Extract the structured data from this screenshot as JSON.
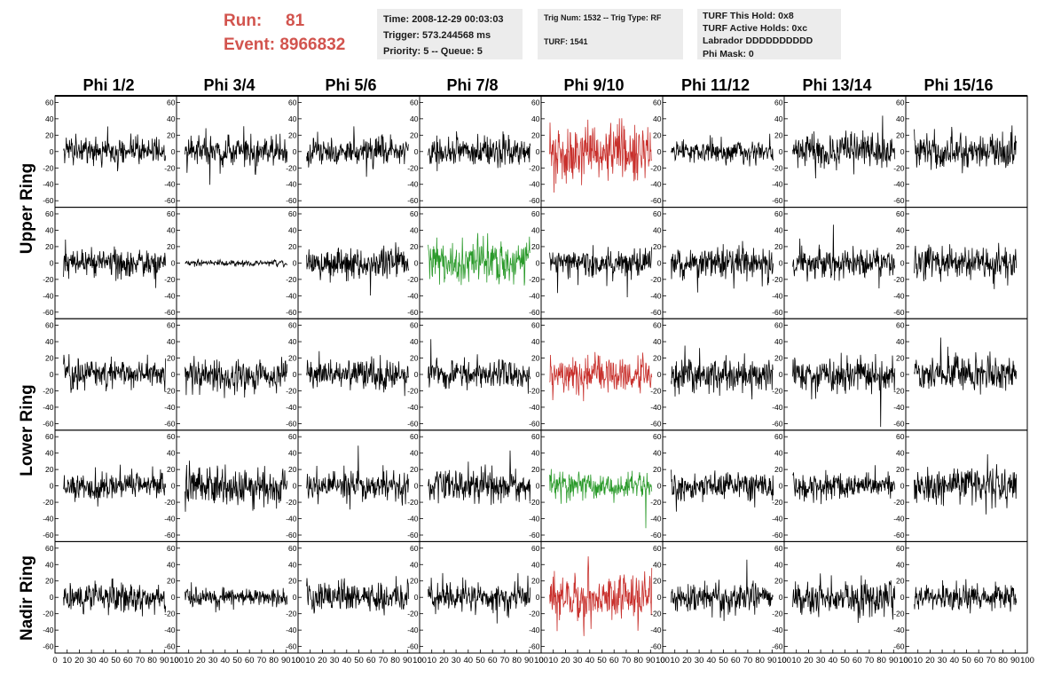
{
  "header": {
    "run_label": "Run:",
    "run_value": "81",
    "event_label": "Event:",
    "event_value": "8966832"
  },
  "info": {
    "time": "Time: 2008-12-29 00:03:03",
    "trigger": "Trigger: 573.244568 ms",
    "priority": "Priority: 5 -- Queue: 5",
    "trig": "Trig Num: 1532 -- Trig Type: RF",
    "turf": "TURF: 1541",
    "turf_this_hold": "TURF This Hold: 0x8",
    "turf_active_holds": "TURF Active Holds: 0xc",
    "labrador": "Labrador DDDDDDDDDD",
    "phi_mask": "Phi Mask: 0"
  },
  "colors": {
    "header_red": "#d2544e",
    "trace_default": "#000000",
    "trace_red": "#c8302c",
    "trace_green": "#2a9a2a"
  },
  "chart_data": {
    "type": "line",
    "columns": [
      "Phi 1/2",
      "Phi 3/4",
      "Phi 5/6",
      "Phi 7/8",
      "Phi 9/10",
      "Phi 11/12",
      "Phi 13/14",
      "Phi 15/16"
    ],
    "ring_labels": [
      "Upper Ring",
      "Lower Ring",
      "Nadir Ring"
    ],
    "rows": 5,
    "xlim": [
      0,
      100
    ],
    "ylim": [
      -68,
      68
    ],
    "x_tick_labels": [
      "0",
      "10",
      "20",
      "30",
      "40",
      "50",
      "60",
      "70",
      "80",
      "90",
      "100"
    ],
    "y_tick_labels": [
      "60",
      "40",
      "20",
      "0",
      "-20",
      "-40",
      "-60"
    ],
    "y_ticks": [
      60,
      40,
      20,
      0,
      -20,
      -40,
      -60
    ],
    "samples_per_trace": 260,
    "trace_amplitude": [
      [
        10,
        10,
        10,
        10,
        20,
        8,
        12,
        12
      ],
      [
        10,
        2,
        11,
        15,
        10,
        11,
        10,
        12
      ],
      [
        11,
        11,
        11,
        10,
        12,
        12,
        11,
        12
      ],
      [
        10,
        14,
        10,
        11,
        9,
        10,
        9,
        13
      ],
      [
        11,
        7,
        10,
        10,
        16,
        11,
        12,
        10
      ]
    ],
    "highlighted_traces": [
      {
        "row": 0,
        "col": 4,
        "color": "red"
      },
      {
        "row": 1,
        "col": 3,
        "color": "green"
      },
      {
        "row": 2,
        "col": 4,
        "color": "red"
      },
      {
        "row": 3,
        "col": 4,
        "color": "green"
      },
      {
        "row": 4,
        "col": 4,
        "color": "red"
      }
    ]
  }
}
